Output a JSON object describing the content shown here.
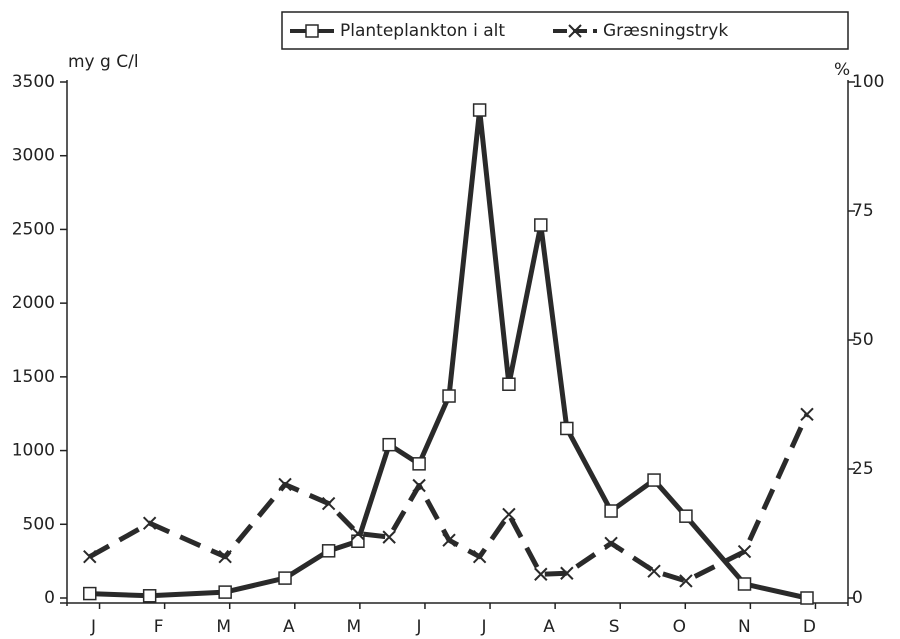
{
  "chart_data": {
    "type": "line",
    "y_label": "my g C/l",
    "y2_label": "%",
    "x": [
      0.35,
      1.27,
      2.43,
      3.35,
      4.02,
      4.47,
      4.95,
      5.41,
      5.87,
      6.34,
      6.79,
      7.28,
      7.68,
      8.36,
      9.02,
      9.51,
      10.41,
      11.37
    ],
    "xlim": [
      0,
      12
    ],
    "xticks": [
      {
        "value": 0.5,
        "label": "J"
      },
      {
        "value": 1.5,
        "label": "F"
      },
      {
        "value": 2.5,
        "label": "M"
      },
      {
        "value": 3.5,
        "label": "A"
      },
      {
        "value": 4.5,
        "label": "M"
      },
      {
        "value": 5.5,
        "label": "J"
      },
      {
        "value": 6.5,
        "label": "J"
      },
      {
        "value": 7.5,
        "label": "A"
      },
      {
        "value": 8.5,
        "label": "S"
      },
      {
        "value": 9.5,
        "label": "O"
      },
      {
        "value": 10.5,
        "label": "N"
      },
      {
        "value": 11.5,
        "label": "D"
      }
    ],
    "ylim": [
      0,
      3500
    ],
    "yticks": [
      0,
      500,
      1000,
      1500,
      2000,
      2500,
      3000,
      3500
    ],
    "y2lim": [
      0,
      100
    ],
    "y2ticks": [
      0,
      25,
      50,
      75,
      100
    ],
    "legend": "top-right",
    "series": [
      {
        "name": "Planteplankton i alt",
        "color": "#2a2a2a",
        "marker": "square",
        "dash": false,
        "values": [
          30,
          15,
          40,
          135,
          320,
          385,
          1040,
          910,
          1370,
          3310,
          1450,
          2530,
          1150,
          590,
          800,
          555,
          95,
          0
        ]
      },
      {
        "name": "Græsningstryk",
        "color": "#2a2a2a",
        "marker": "x",
        "dash": true,
        "axis": "y2",
        "values": [
          8,
          14.5,
          8,
          22,
          18.3,
          12.5,
          11.8,
          21.8,
          11.2,
          8,
          16.2,
          4.6,
          4.8,
          10.6,
          5.2,
          3.3,
          9,
          35.6
        ]
      }
    ]
  }
}
